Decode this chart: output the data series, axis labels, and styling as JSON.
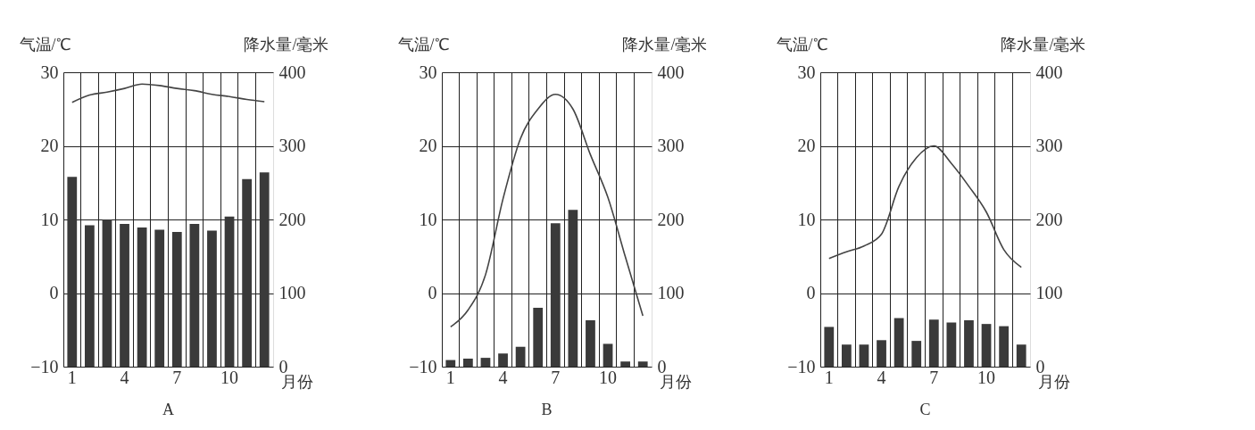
{
  "chart_data": [
    {
      "type": "bar",
      "title": "A",
      "categories": [
        "1",
        null,
        null,
        "4",
        null,
        null,
        "7",
        null,
        null,
        "10",
        null,
        null
      ],
      "xlabel": "月份",
      "ylabel": "气温/℃",
      "y2label": "降水量/毫米",
      "ylim": [
        -10,
        30
      ],
      "yticks": [
        -10,
        0,
        10,
        20,
        30
      ],
      "y2lim": [
        0,
        400
      ],
      "y2ticks": [
        0,
        100,
        200,
        300,
        400
      ],
      "grid": true,
      "series": [
        {
          "axis": "y2",
          "color": "#3a3a3a",
          "values": [
            258,
            192,
            200,
            194,
            189,
            186,
            183,
            194,
            185,
            204,
            255,
            264
          ]
        },
        {
          "type": "line",
          "color": "#444444",
          "values": [
            25.9,
            26.9,
            27.3,
            27.8,
            28.4,
            28.2,
            27.8,
            27.5,
            27.0,
            26.7,
            26.3,
            26.0
          ]
        }
      ]
    },
    {
      "type": "bar",
      "title": "B",
      "categories": [
        "1",
        null,
        null,
        "4",
        null,
        null,
        "7",
        null,
        null,
        "10",
        null,
        null
      ],
      "xlabel": "月份",
      "ylabel": "气温/℃",
      "y2label": "降水量/毫米",
      "ylim": [
        -10,
        30
      ],
      "yticks": [
        -10,
        0,
        10,
        20,
        30
      ],
      "y2lim": [
        0,
        400
      ],
      "y2ticks": [
        0,
        100,
        200,
        300,
        400
      ],
      "grid": true,
      "series": [
        {
          "axis": "y2",
          "color": "#3a3a3a",
          "values": [
            9,
            11,
            12,
            18,
            27,
            80,
            195,
            213,
            63,
            31,
            7,
            7
          ]
        },
        {
          "type": "line",
          "color": "#444444",
          "values": [
            -4.6,
            -2.3,
            2.5,
            12.8,
            21,
            25,
            27,
            25,
            18.8,
            13,
            4.9,
            -3.1
          ]
        }
      ]
    },
    {
      "type": "bar",
      "title": "C",
      "categories": [
        "1",
        null,
        null,
        "4",
        null,
        null,
        "7",
        null,
        null,
        "10",
        null,
        null
      ],
      "xlabel": "月份",
      "ylabel": "气温/℃",
      "y2label": "降水量/毫米",
      "ylim": [
        -10,
        30
      ],
      "yticks": [
        -10,
        0,
        10,
        20,
        30
      ],
      "y2lim": [
        0,
        400
      ],
      "y2ticks": [
        0,
        100,
        200,
        300,
        400
      ],
      "grid": true,
      "series": [
        {
          "axis": "y2",
          "color": "#3a3a3a",
          "values": [
            54,
            30,
            30,
            36,
            66,
            35,
            64,
            60,
            63,
            58,
            55,
            30
          ]
        },
        {
          "type": "line",
          "color": "#444444",
          "values": [
            4.7,
            5.6,
            6.4,
            8,
            14.5,
            18.4,
            20,
            17.6,
            14.5,
            11,
            5.9,
            3.5
          ]
        }
      ]
    }
  ]
}
